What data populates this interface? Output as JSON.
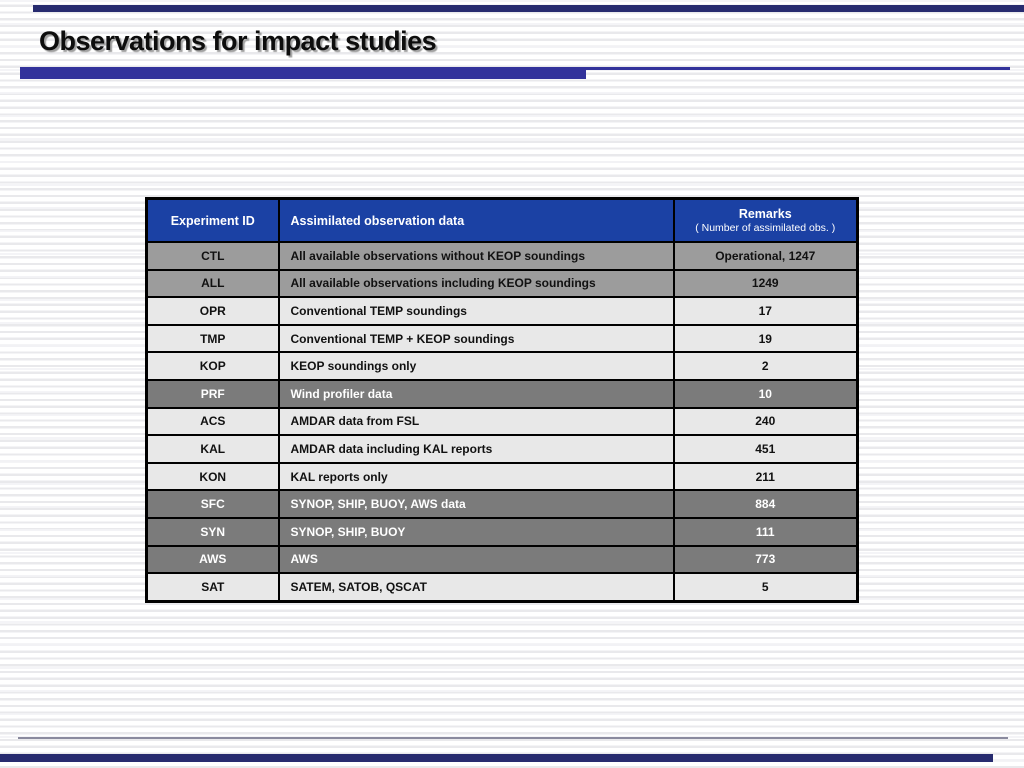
{
  "slide": {
    "title": "Observations for impact studies"
  },
  "colors": {
    "edge_bar_navy": "#272b6f",
    "title_underline_blue": "#32329b",
    "table_header_blue": "#1b41a4",
    "row_light_gray": "#e8e8e8",
    "row_medium_gray": "#9c9c9c",
    "row_dark_gray": "#7b7b7b",
    "stripe_gray": "#e9e9ec"
  },
  "table": {
    "columns": [
      {
        "label": "Experiment ID"
      },
      {
        "label": "Assimilated observation data"
      },
      {
        "label": "Remarks",
        "sublabel": "( Number of assimilated obs. )"
      }
    ],
    "rows": [
      {
        "id": "CTL",
        "data": "All available observations without KEOP soundings",
        "remarks": "Operational, 1247",
        "shade": "medium"
      },
      {
        "id": "ALL",
        "data": "All available observations including KEOP soundings",
        "remarks": "1249",
        "shade": "medium"
      },
      {
        "id": "OPR",
        "data": "Conventional TEMP soundings",
        "remarks": "17",
        "shade": "light"
      },
      {
        "id": "TMP",
        "data": "Conventional TEMP + KEOP soundings",
        "remarks": "19",
        "shade": "light"
      },
      {
        "id": "KOP",
        "data": "KEOP soundings only",
        "remarks": "2",
        "shade": "light"
      },
      {
        "id": "PRF",
        "data": "Wind profiler data",
        "remarks": "10",
        "shade": "dark"
      },
      {
        "id": "ACS",
        "data": "AMDAR data from FSL",
        "remarks": "240",
        "shade": "light"
      },
      {
        "id": "KAL",
        "data": "AMDAR data including KAL reports",
        "remarks": "451",
        "shade": "light"
      },
      {
        "id": "KON",
        "data": "KAL reports only",
        "remarks": "211",
        "shade": "light"
      },
      {
        "id": "SFC",
        "data": "SYNOP, SHIP, BUOY, AWS data",
        "remarks": "884",
        "shade": "dark"
      },
      {
        "id": "SYN",
        "data": "SYNOP, SHIP, BUOY",
        "remarks": "111",
        "shade": "dark"
      },
      {
        "id": "AWS",
        "data": "AWS",
        "remarks": "773",
        "shade": "dark"
      },
      {
        "id": "SAT",
        "data": "SATEM, SATOB, QSCAT",
        "remarks": "5",
        "shade": "light"
      }
    ]
  }
}
